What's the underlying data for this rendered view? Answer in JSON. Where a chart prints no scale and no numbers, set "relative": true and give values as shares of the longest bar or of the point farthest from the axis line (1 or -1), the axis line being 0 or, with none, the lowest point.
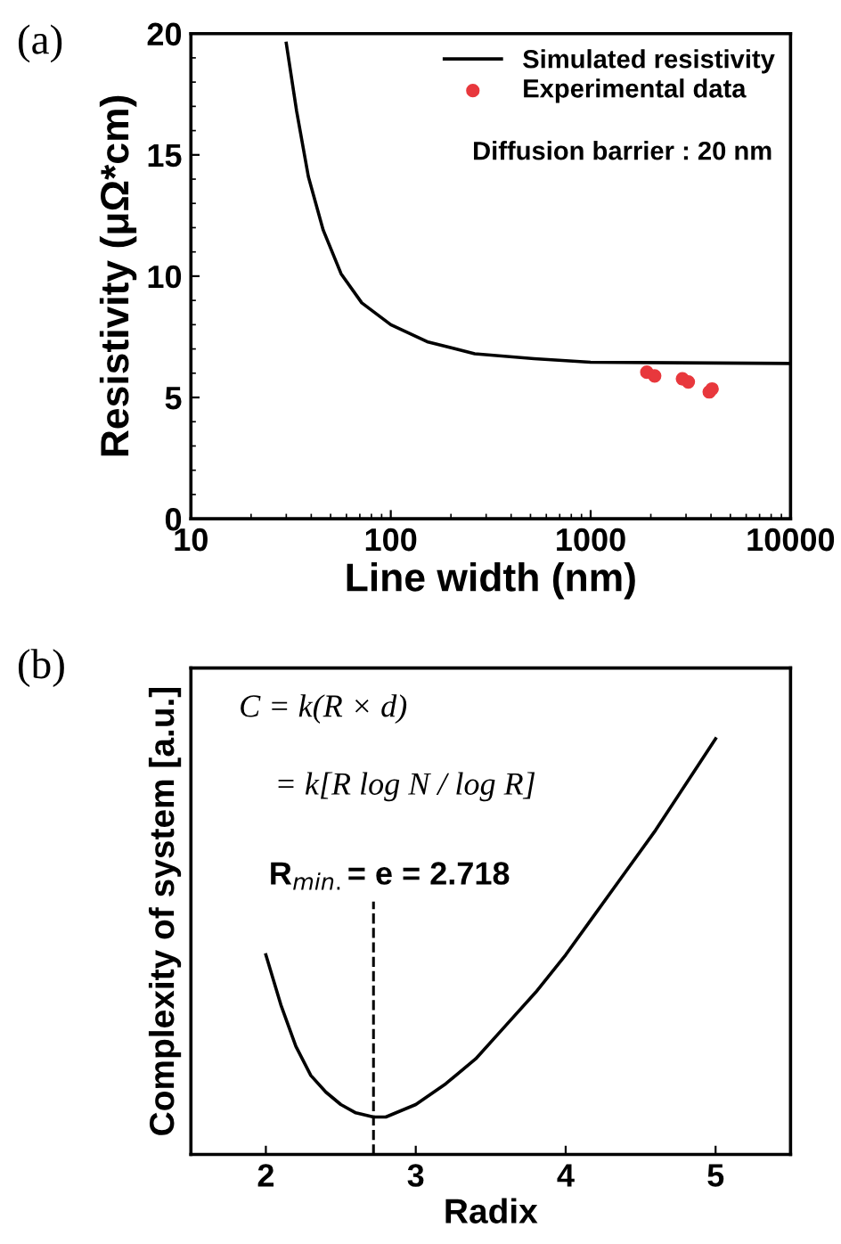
{
  "chart_data": [
    {
      "type": "line",
      "xlabel": "Line width (nm)",
      "ylabel": "Resistivity (μΩ*cm)",
      "log": "x",
      "xlim": [
        10,
        10000
      ],
      "xticks": [
        10,
        100,
        1000,
        10000
      ],
      "ylim": [
        0,
        20
      ],
      "yticks": [
        0,
        5,
        10,
        15,
        20
      ],
      "legend": "top right",
      "grid": false,
      "annotations": [
        "(a)",
        "Diffusion barrier : 20 nm"
      ],
      "series": [
        {
          "name": "Simulated resistivity",
          "color": "#000000",
          "marker": "none",
          "line_style": "solid",
          "x": [
            30,
            33.8,
            38.7,
            45.9,
            56.4,
            71.6,
            100,
            152,
            263,
            521,
            1000,
            10000
          ],
          "values": [
            19.6,
            16.8,
            14.1,
            11.9,
            10.1,
            8.9,
            8.0,
            7.3,
            6.8,
            6.6,
            6.45,
            6.4
          ]
        },
        {
          "name": "Experimental data",
          "type": "scatter",
          "color": "#e8383d",
          "marker": "circle",
          "x": [
            1910,
            2090,
            2880,
            3080,
            3920,
            4050
          ],
          "values": [
            6.04,
            5.89,
            5.77,
            5.64,
            5.23,
            5.35
          ]
        }
      ]
    },
    {
      "type": "line",
      "xlabel": "Radix",
      "ylabel": "Complexity of system [a.u.]",
      "relative": true,
      "xlim": [
        1.5,
        5.5
      ],
      "xticks": [
        2,
        3,
        4,
        5
      ],
      "grid": false,
      "legend": false,
      "annotations": [
        "(b)",
        "C = k(R × d)",
        "= k[R log N / log R]",
        "R$_{min.}$= e = 2.718"
      ],
      "ref_lines": [
        {
          "axis": "x",
          "value": 2.718,
          "line_style": "dashed",
          "color": "#000000"
        }
      ],
      "series": [
        {
          "color": "#000000",
          "marker": "none",
          "line_style": "solid",
          "x": [
            2.0,
            2.1,
            2.2,
            2.3,
            2.4,
            2.5,
            2.6,
            2.718,
            2.8,
            3.0,
            3.2,
            3.4,
            3.6,
            3.8,
            4.0,
            4.2,
            4.4,
            4.6,
            4.8,
            5.0
          ],
          "values": [
            0.48,
            0.36,
            0.26,
            0.19,
            0.15,
            0.12,
            0.1,
            0.09,
            0.09,
            0.12,
            0.17,
            0.23,
            0.31,
            0.39,
            0.48,
            0.58,
            0.68,
            0.78,
            0.89,
            1.0
          ]
        }
      ]
    }
  ]
}
